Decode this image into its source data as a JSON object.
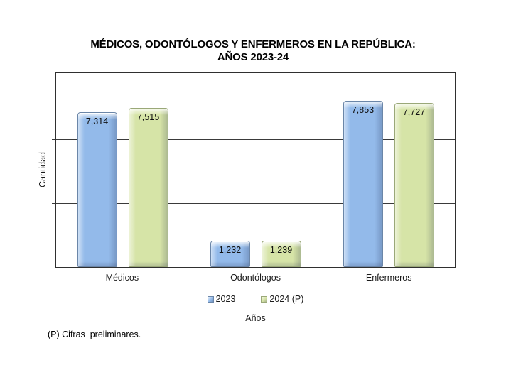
{
  "page": {
    "background": "#ffffff"
  },
  "title": {
    "line1": "MÉDICOS, ODONTÓLOGOS Y ENFERMEROS EN LA REPÚBLICA:",
    "line2": "AÑOS 2023-24"
  },
  "footnote": "(P) Cifras  preliminares.",
  "chart_data": {
    "type": "bar",
    "title": "MÉDICOS, ODONTÓLOGOS Y ENFERMEROS EN LA REPÚBLICA: AÑOS 2023-24",
    "categories": [
      "Médicos",
      "Odontólogos",
      "Enfermeros"
    ],
    "series": [
      {
        "name": "2023",
        "color": "#93BAEA",
        "edge_color": "#6B86A8",
        "values": [
          7314,
          1232,
          7853
        ],
        "labels": [
          "7,314",
          "1,232",
          "7,853"
        ]
      },
      {
        "name": "2024 (P)",
        "color": "#D6E4A7",
        "edge_color": "#9AA878",
        "values": [
          7515,
          1239,
          7727
        ],
        "labels": [
          "7,515",
          "1,239",
          "7,727"
        ]
      }
    ],
    "xlabel": "Años",
    "ylabel": "Cantidad",
    "ylim": [
      0,
      9150
    ],
    "gridlines": [
      3000,
      6000
    ],
    "grid": "horizontal",
    "legend_position": "bottom",
    "value_labels": "inside-top",
    "y_tick_labels_shown": false
  }
}
